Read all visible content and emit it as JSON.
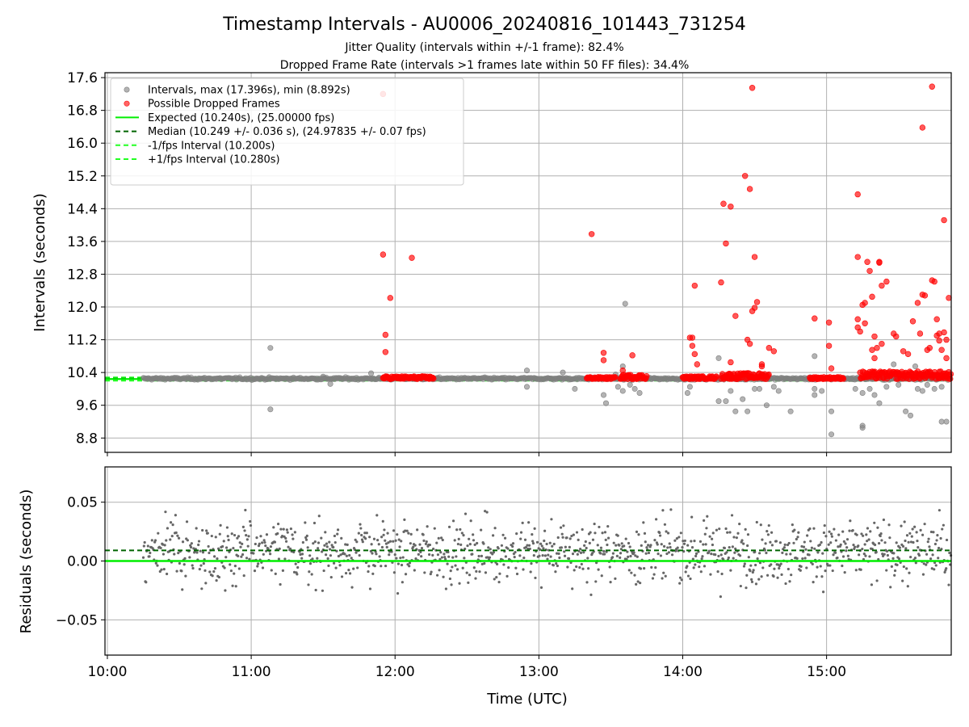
{
  "figure": {
    "title": "Timestamp Intervals - AU0006_20240816_101443_731254",
    "subtitle1": "Jitter Quality (intervals within +/-1 frame): 82.4%",
    "subtitle2": "Dropped Frame Rate (intervals >1 frames late within 50 FF files): 34.4%"
  },
  "colors": {
    "intervals": "#808080",
    "dropped": "#ff0000",
    "expected": "#00ee00",
    "median": "#006400",
    "band": "#22ff22",
    "residual_points": "#666666",
    "grid": "#b0b0b0"
  },
  "chart_data": [
    {
      "type": "scatter",
      "panel": "top",
      "xlabel": "",
      "ylabel": "Intervals (seconds)",
      "x_ticks": [
        "10:00",
        "11:00",
        "12:00",
        "13:00",
        "14:00",
        "15:00"
      ],
      "y_ticks": [
        "8.8",
        "9.6",
        "10.4",
        "11.2",
        "12.0",
        "12.8",
        "13.6",
        "14.4",
        "15.2",
        "16.0",
        "16.8",
        "17.6"
      ],
      "xlim": [
        "09:59",
        "15:52"
      ],
      "ylim": [
        8.45,
        17.72
      ],
      "grid": true,
      "legend_placement": "upper-left",
      "legend": [
        "Intervals, max (17.396s), min (8.892s)",
        "Possible Dropped Frames",
        "Expected (10.240s), (25.00000 fps)",
        "Median (10.249 +/- 0.036 s), (24.97835 +/- 0.07 fps)",
        "-1/fps Interval (10.200s)",
        "+1/fps Interval (10.280s)"
      ],
      "reference_lines": {
        "expected": 10.24,
        "median": 10.249,
        "minus_one_frame": 10.2,
        "plus_one_frame": 10.28
      },
      "series": [
        {
          "name": "Intervals, max (17.396s), min (8.892s)",
          "points": [
            [
              "11:08",
              11.0
            ],
            [
              "11:08",
              9.5
            ],
            [
              "11:50",
              10.38
            ],
            [
              "11:30",
              10.3
            ],
            [
              "11:33",
              10.12
            ],
            [
              "12:55",
              10.45
            ],
            [
              "12:55",
              10.05
            ],
            [
              "13:10",
              10.4
            ],
            [
              "13:15",
              10.0
            ],
            [
              "13:35",
              10.55
            ],
            [
              "13:27",
              9.85
            ],
            [
              "13:28",
              9.65
            ],
            [
              "13:33",
              10.05
            ],
            [
              "13:35",
              9.95
            ],
            [
              "13:38",
              10.1
            ],
            [
              "13:40",
              10.0
            ],
            [
              "13:42",
              9.9
            ],
            [
              "13:32",
              10.35
            ],
            [
              "13:36",
              12.08
            ],
            [
              "14:02",
              9.9
            ],
            [
              "14:03",
              10.05
            ],
            [
              "14:15",
              10.75
            ],
            [
              "14:15",
              9.7
            ],
            [
              "14:18",
              9.7
            ],
            [
              "14:20",
              9.95
            ],
            [
              "14:22",
              9.45
            ],
            [
              "14:25",
              9.75
            ],
            [
              "14:27",
              9.45
            ],
            [
              "14:30",
              10.0
            ],
            [
              "14:32",
              10.0
            ],
            [
              "14:35",
              9.6
            ],
            [
              "14:38",
              10.05
            ],
            [
              "14:40",
              9.95
            ],
            [
              "14:45",
              9.45
            ],
            [
              "14:55",
              10.8
            ],
            [
              "14:55",
              10.0
            ],
            [
              "14:58",
              9.95
            ],
            [
              "14:55",
              9.85
            ],
            [
              "15:02",
              9.45
            ],
            [
              "15:02",
              8.89
            ],
            [
              "15:12",
              10.0
            ],
            [
              "15:15",
              9.9
            ],
            [
              "15:15",
              9.1
            ],
            [
              "15:15",
              9.05
            ],
            [
              "15:18",
              10.0
            ],
            [
              "15:20",
              9.85
            ],
            [
              "15:22",
              9.65
            ],
            [
              "15:25",
              10.05
            ],
            [
              "15:30",
              10.1
            ],
            [
              "15:33",
              9.45
            ],
            [
              "15:35",
              9.35
            ],
            [
              "15:38",
              10.0
            ],
            [
              "15:40",
              9.95
            ],
            [
              "15:42",
              10.1
            ],
            [
              "15:45",
              10.0
            ],
            [
              "15:48",
              9.2
            ],
            [
              "15:50",
              9.2
            ],
            [
              "15:48",
              10.05
            ],
            [
              "15:28",
              10.6
            ],
            [
              "15:37",
              10.55
            ]
          ]
        },
        {
          "name": "Possible Dropped Frames",
          "points": [
            [
              "11:55",
              17.2
            ],
            [
              "11:55",
              13.28
            ],
            [
              "11:58",
              12.22
            ],
            [
              "11:56",
              11.32
            ],
            [
              "11:56",
              10.9
            ],
            [
              "12:07",
              13.2
            ],
            [
              "13:22",
              13.78
            ],
            [
              "13:27",
              10.88
            ],
            [
              "13:27",
              10.7
            ],
            [
              "13:39",
              10.82
            ],
            [
              "13:35",
              10.45
            ],
            [
              "14:03",
              11.25
            ],
            [
              "14:04",
              11.25
            ],
            [
              "14:04",
              11.05
            ],
            [
              "14:05",
              10.85
            ],
            [
              "14:06",
              10.6
            ],
            [
              "14:05",
              12.52
            ],
            [
              "14:16",
              12.6
            ],
            [
              "14:17",
              14.52
            ],
            [
              "14:18",
              13.55
            ],
            [
              "14:20",
              14.45
            ],
            [
              "14:20",
              10.65
            ],
            [
              "14:22",
              11.78
            ],
            [
              "14:26",
              15.2
            ],
            [
              "14:28",
              14.88
            ],
            [
              "14:29",
              17.35
            ],
            [
              "14:30",
              13.22
            ],
            [
              "14:31",
              12.12
            ],
            [
              "14:30",
              11.98
            ],
            [
              "14:29",
              11.9
            ],
            [
              "14:27",
              11.2
            ],
            [
              "14:28",
              11.1
            ],
            [
              "14:33",
              10.6
            ],
            [
              "14:33",
              10.55
            ],
            [
              "14:36",
              11.0
            ],
            [
              "14:38",
              10.92
            ],
            [
              "14:55",
              11.72
            ],
            [
              "15:01",
              11.62
            ],
            [
              "15:01",
              11.05
            ],
            [
              "15:02",
              10.5
            ],
            [
              "15:13",
              14.75
            ],
            [
              "15:13",
              13.22
            ],
            [
              "15:13",
              11.7
            ],
            [
              "15:13",
              11.5
            ],
            [
              "15:14",
              11.4
            ],
            [
              "15:15",
              12.05
            ],
            [
              "15:16",
              12.1
            ],
            [
              "15:16",
              11.6
            ],
            [
              "15:17",
              13.1
            ],
            [
              "15:18",
              12.88
            ],
            [
              "15:19",
              12.25
            ],
            [
              "15:19",
              10.95
            ],
            [
              "15:20",
              10.75
            ],
            [
              "15:20",
              11.28
            ],
            [
              "15:21",
              11.0
            ],
            [
              "15:22",
              13.08
            ],
            [
              "15:22",
              13.1
            ],
            [
              "15:23",
              12.52
            ],
            [
              "15:23",
              11.1
            ],
            [
              "15:25",
              12.62
            ],
            [
              "15:28",
              11.35
            ],
            [
              "15:29",
              11.28
            ],
            [
              "15:32",
              10.92
            ],
            [
              "15:34",
              10.85
            ],
            [
              "15:36",
              11.65
            ],
            [
              "15:38",
              12.1
            ],
            [
              "15:39",
              11.35
            ],
            [
              "15:40",
              16.38
            ],
            [
              "15:40",
              12.3
            ],
            [
              "15:41",
              12.28
            ],
            [
              "15:42",
              10.95
            ],
            [
              "15:43",
              11.0
            ],
            [
              "15:44",
              12.65
            ],
            [
              "15:44",
              17.38
            ],
            [
              "15:45",
              12.62
            ],
            [
              "15:46",
              11.7
            ],
            [
              "15:46",
              11.3
            ],
            [
              "15:47",
              11.35
            ],
            [
              "15:47",
              11.18
            ],
            [
              "15:48",
              10.95
            ],
            [
              "15:49",
              14.12
            ],
            [
              "15:49",
              11.38
            ],
            [
              "15:50",
              11.2
            ],
            [
              "15:50",
              10.75
            ],
            [
              "15:51",
              12.22
            ]
          ],
          "dense_runs": [
            [
              "11:55",
              "12:16",
              10.24,
              10.35
            ],
            [
              "13:20",
              "13:32",
              10.24,
              10.32
            ],
            [
              "13:34",
              "13:45",
              10.24,
              10.42
            ],
            [
              "14:00",
              "14:14",
              10.24,
              10.35
            ],
            [
              "14:16",
              "14:36",
              10.24,
              10.48
            ],
            [
              "14:53",
              "15:07",
              10.24,
              10.32
            ],
            [
              "15:14",
              "15:52",
              10.24,
              10.55
            ]
          ]
        }
      ]
    },
    {
      "type": "scatter",
      "panel": "bottom",
      "xlabel": "Time (UTC)",
      "ylabel": "Residuals (seconds)",
      "x_ticks": [
        "10:00",
        "11:00",
        "12:00",
        "13:00",
        "14:00",
        "15:00"
      ],
      "y_ticks": [
        "0.05",
        "0.00",
        "−0.05"
      ],
      "xlim": [
        "09:59",
        "15:52"
      ],
      "ylim": [
        -0.08,
        0.08
      ],
      "grid": true,
      "reference_lines": {
        "zero": 0.0,
        "median_offset": 0.009
      },
      "series": [
        {
          "name": "",
          "x_range": [
            "10:15",
            "15:52"
          ],
          "note_points": "approximately 1200 residual values spread between -0.08 and 0.08, concentrated between -0.03 and 0.04"
        }
      ]
    }
  ]
}
